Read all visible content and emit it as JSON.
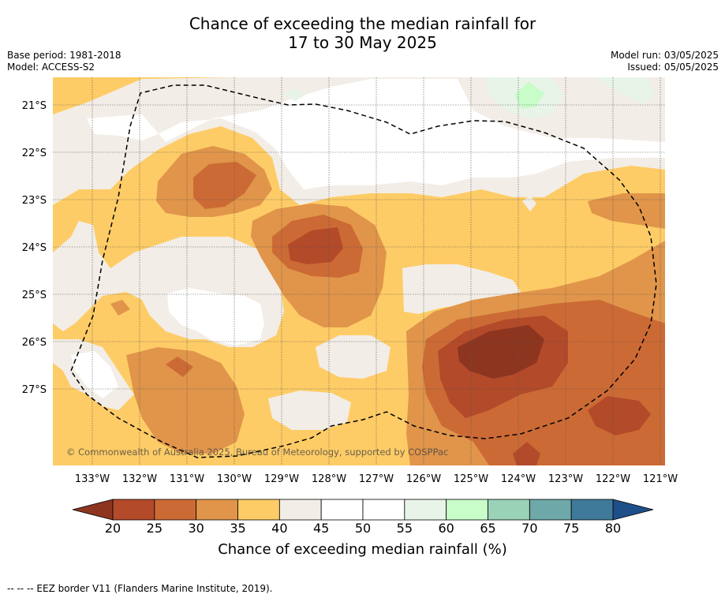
{
  "title_line1": "Chance of exceeding the median rainfall for",
  "title_line2": "17 to 30 May 2025",
  "base_period": "Base period: 1981-2018",
  "model": "Model: ACCESS-S2",
  "model_run": "Model run: 03/05/2025",
  "issued": "Issued: 05/05/2025",
  "copyright": "© Commonwealth of Australia 2025, Bureau of Meteorology, supported by COSPPac",
  "lon_labels": [
    "133°W",
    "132°W",
    "131°W",
    "130°W",
    "129°W",
    "128°W",
    "127°W",
    "126°W",
    "125°W",
    "124°W",
    "123°W",
    "122°W",
    "121°W"
  ],
  "lat_labels": [
    "21°S",
    "22°S",
    "23°S",
    "24°S",
    "25°S",
    "26°S",
    "27°S"
  ],
  "colorbar": {
    "ticks": [
      "20",
      "25",
      "30",
      "35",
      "40",
      "45",
      "50",
      "55",
      "60",
      "65",
      "70",
      "75",
      "80"
    ],
    "colors": [
      "#b34a2a",
      "#cc6a35",
      "#e0954a",
      "#fecc66",
      "#f2ede6",
      "#ffffff",
      "#ffffff",
      "#e8f4e8",
      "#c8fcc8",
      "#9ad2b8",
      "#6ea8a8",
      "#3f7a9a"
    ],
    "under_color": "#8e3520",
    "over_color": "#1f4f8a",
    "label": "Chance of exceeding median rainfall (%)"
  },
  "footnote": "--  --  -- EEZ border V11 (Flanders Marine Institute, 2019)."
}
